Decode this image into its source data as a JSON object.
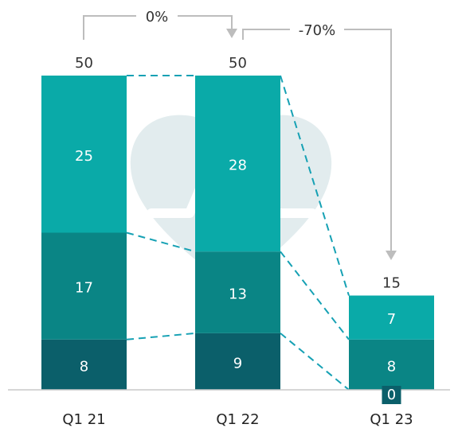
{
  "chart_data": {
    "type": "bar",
    "stacked": true,
    "categories": [
      "Q1 21",
      "Q1 22",
      "Q1 23"
    ],
    "series": [
      {
        "values": [
          8,
          9,
          0
        ],
        "color": "#0b5f6a"
      },
      {
        "values": [
          17,
          13,
          8
        ],
        "color": "#0a8585"
      },
      {
        "values": [
          25,
          28,
          7
        ],
        "color": "#0aaaa8"
      }
    ],
    "totals": [
      50,
      50,
      15
    ],
    "changes": [
      {
        "from": "Q1 21",
        "to": "Q1 22",
        "label": "0%"
      },
      {
        "from": "Q1 22",
        "to": "Q1 23",
        "label": "-70%"
      }
    ],
    "ylim": [
      0,
      50
    ],
    "grid": false,
    "connector_lines": "dashed",
    "background_icon": "heart-rate-icon"
  }
}
